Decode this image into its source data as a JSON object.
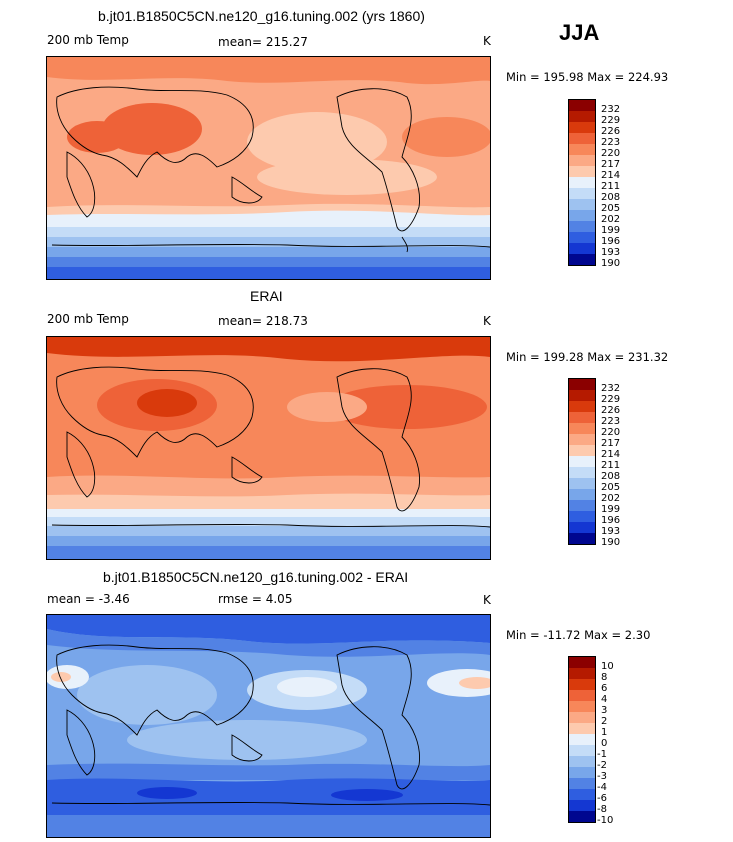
{
  "season": "JJA",
  "panels": [
    {
      "id": "model",
      "title": "b.jt01.B1850C5CN.ne120_g16.tuning.002 (yrs 1860)",
      "left_label": "200 mb Temp",
      "center_label": "mean=  215.27",
      "right_label": "K",
      "minmax": "Min = 195.98 Max = 224.93",
      "colorbar_labels": [
        "232",
        "229",
        "226",
        "223",
        "220",
        "217",
        "214",
        "211",
        "208",
        "205",
        "202",
        "199",
        "196",
        "193",
        "190"
      ]
    },
    {
      "id": "obs",
      "title": "ERAI",
      "left_label": "200 mb Temp",
      "center_label": "mean=  218.73",
      "right_label": "K",
      "minmax": "Min = 199.28 Max = 231.32",
      "colorbar_labels": [
        "232",
        "229",
        "226",
        "223",
        "220",
        "217",
        "214",
        "211",
        "208",
        "205",
        "202",
        "199",
        "196",
        "193",
        "190"
      ]
    },
    {
      "id": "diff",
      "title": "b.jt01.B1850C5CN.ne120_g16.tuning.002 - ERAI",
      "left_label": "mean =   -3.46",
      "center_label": "rmse =    4.05",
      "right_label": "K",
      "minmax": "Min = -11.72 Max =    2.30",
      "colorbar_labels": [
        "10",
        "8",
        "6",
        "4",
        "3",
        "2",
        "1",
        "0",
        "-1",
        "-2",
        "-3",
        "-4",
        "-6",
        "-8",
        "-10"
      ]
    }
  ],
  "colors": {
    "scale": [
      "#8b0000",
      "#b51a00",
      "#d93a0c",
      "#ee6238",
      "#f7875a",
      "#fba985",
      "#fdcaae",
      "#e8f1fb",
      "#c4dcf7",
      "#9ec2f0",
      "#78a6ea",
      "#5282e4",
      "#2f5ee0",
      "#1437d2",
      "#00078f"
    ]
  }
}
